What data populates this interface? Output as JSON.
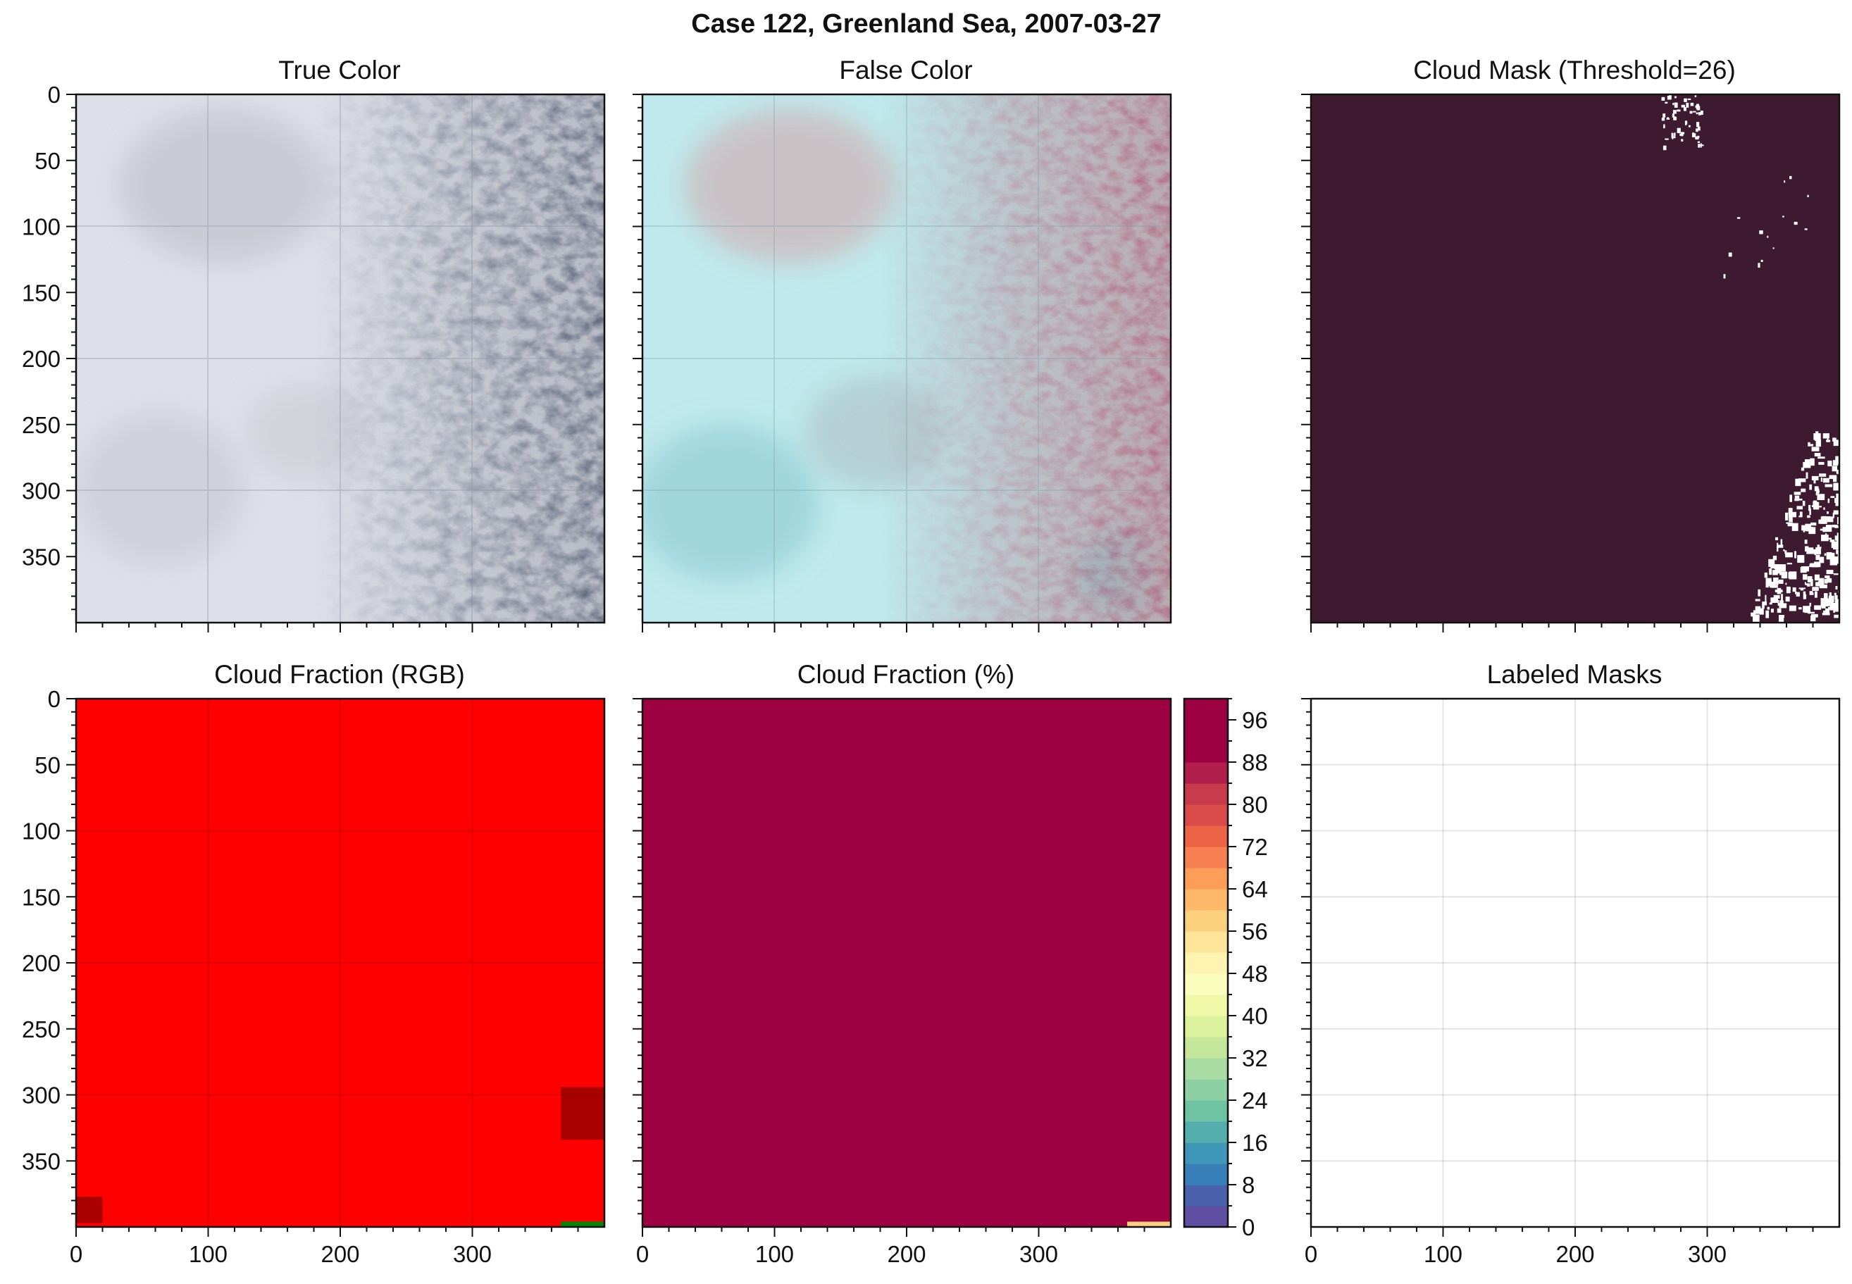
{
  "figure": {
    "title": "Case 122, Greenland Sea, 2007-03-27"
  },
  "chart_data": [
    {
      "type": "image",
      "title": "True Color",
      "xlim": [
        0,
        400
      ],
      "ylim": [
        400,
        0
      ],
      "yticks": [
        0,
        50,
        100,
        150,
        200,
        250,
        300,
        350
      ],
      "xticks": [],
      "content": "satellite true-color RGB: sea ice / cloud field, open-water cloud streets to the east"
    },
    {
      "type": "image",
      "title": "False Color",
      "xlim": [
        0,
        400
      ],
      "ylim": [
        400,
        0
      ],
      "yticks": [],
      "xticks": [],
      "content": "satellite false-color composite, cyan ice, reddish cloud streets"
    },
    {
      "type": "heatmap",
      "title": "Cloud Mask (Threshold=26)",
      "threshold": 26,
      "xlim": [
        0,
        400
      ],
      "ylim": [
        400,
        0
      ],
      "background_color": "#3d1a30",
      "clear_sky_color": "#ffffff",
      "clear_regions": [
        {
          "desc": "small scattered pixels",
          "x": [
            265,
            295
          ],
          "y": [
            0,
            40
          ]
        },
        {
          "desc": "isolated specks",
          "x": [
            310,
            385
          ],
          "y": [
            60,
            140
          ]
        },
        {
          "desc": "white patch cluster",
          "x": [
            330,
            400
          ],
          "y": [
            255,
            395
          ]
        }
      ]
    },
    {
      "type": "heatmap",
      "title": "Cloud Fraction (RGB)",
      "xlim": [
        0,
        400
      ],
      "ylim": [
        400,
        0
      ],
      "xticks": [
        0,
        100,
        200,
        300
      ],
      "yticks": [
        0,
        50,
        100,
        150,
        200,
        250,
        300,
        350
      ],
      "fill_color": "#ff0000",
      "cells": [
        {
          "x": [
            367,
            400
          ],
          "y": [
            294,
            334
          ],
          "color": "#aa0000"
        },
        {
          "x": [
            0,
            20
          ],
          "y": [
            377,
            397
          ],
          "color": "#aa0000"
        },
        {
          "x": [
            367,
            400
          ],
          "y": [
            396,
            400
          ],
          "color": "#008800"
        }
      ]
    },
    {
      "type": "heatmap",
      "title": "Cloud Fraction (%)",
      "xlim": [
        0,
        400
      ],
      "ylim": [
        400,
        0
      ],
      "xticks": [
        0,
        100,
        200,
        300
      ],
      "fill_value": 100,
      "cells": [
        {
          "x": [
            367,
            400
          ],
          "y": [
            294,
            334
          ],
          "value": 90
        },
        {
          "x": [
            0,
            20
          ],
          "y": [
            377,
            397
          ],
          "value": 90
        },
        {
          "x": [
            367,
            400
          ],
          "y": [
            396,
            400
          ],
          "value": 58
        }
      ],
      "colorbar": {
        "min": 0,
        "max": 100,
        "step": 4,
        "ticks": [
          0,
          8,
          16,
          24,
          32,
          40,
          48,
          56,
          64,
          72,
          80,
          88,
          96
        ],
        "colors": [
          "#5e4fa2",
          "#4a62ac",
          "#3880b9",
          "#3f97b7",
          "#54aead",
          "#6ec3a4",
          "#8dd0a4",
          "#a9dca2",
          "#c4e79c",
          "#dbf19c",
          "#eff8a6",
          "#fbfdbe",
          "#fff3b1",
          "#fee599",
          "#fdd080",
          "#fdb869",
          "#fc9d59",
          "#f68052",
          "#ec6346",
          "#da4b4a",
          "#c83a4c",
          "#b11e4b",
          "#9e0142",
          "#9e0142",
          "#9e0142"
        ]
      }
    },
    {
      "type": "image",
      "title": "Labeled Masks",
      "xlim": [
        0,
        400
      ],
      "ylim": [
        400,
        0
      ],
      "xticks": [
        0,
        100,
        200,
        300
      ],
      "yticks": [],
      "content": "empty (no labeled masks)"
    }
  ]
}
